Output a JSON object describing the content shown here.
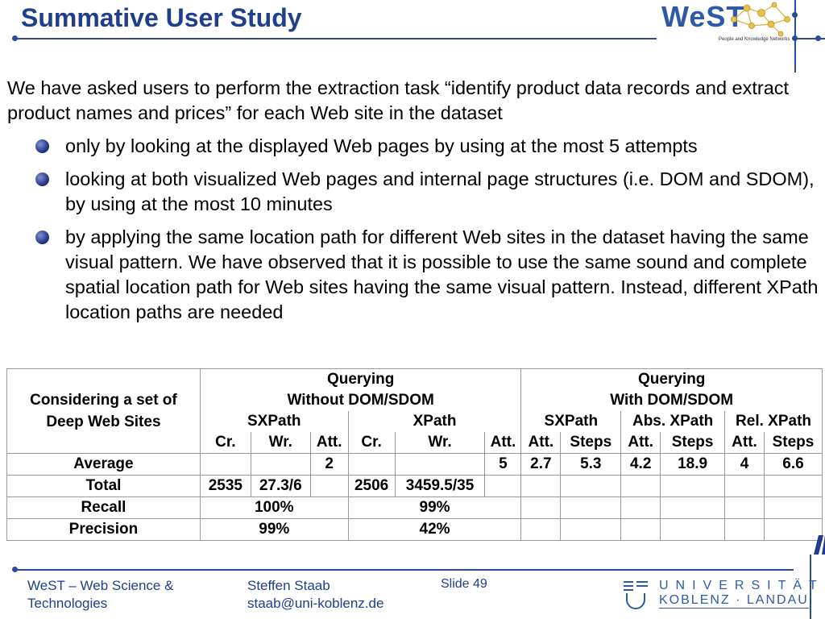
{
  "slide": {
    "title": "Summative User Study",
    "logo_text": "WeST",
    "logo_subtitle": "People and Knowledge Networks",
    "intro": "We have asked users to perform the extraction task “identify product data records and extract product names and prices” for each Web site in the dataset",
    "bullets": [
      "only by looking at the displayed Web pages by using at the most 5 attempts",
      "looking at both visualized Web pages and internal page structures (i.e. DOM and SDOM), by using at the most 10 minutes",
      "by applying the same location path for different Web sites in the dataset having the same visual pattern. We have observed that it is possible to use the same sound and complete spatial location path for Web sites having the same visual pattern. Instead, different XPath location paths are needed"
    ]
  },
  "table": {
    "corner": "Considering a set of Deep Web Sites",
    "group_without": [
      "Querying",
      "Without DOM/SDOM"
    ],
    "group_with": [
      "Querying",
      "With DOM/SDOM"
    ],
    "sub_groups": [
      "SXPath",
      "XPath",
      "SXPath",
      "Abs. XPath",
      "Rel. XPath"
    ],
    "columns": [
      "Cr.",
      "Wr.",
      "Att.",
      "Cr.",
      "Wr.",
      "Att.",
      "Att.",
      "Steps",
      "Att.",
      "Steps",
      "Att.",
      "Steps"
    ],
    "rows": [
      {
        "label": "Average",
        "cells": [
          "",
          "",
          "2",
          "",
          "",
          "5",
          "2.7",
          "5.3",
          "4.2",
          "18.9",
          "4",
          "6.6"
        ]
      },
      {
        "label": "Total",
        "cells": [
          "2535",
          "27.3/6",
          "",
          "2506",
          "3459.5/35",
          "",
          "",
          "",
          "",
          "",
          "",
          ""
        ]
      },
      {
        "label": "Recall",
        "sxpath": "100%",
        "xpath": "99%"
      },
      {
        "label": "Precision",
        "sxpath": "99%",
        "xpath": "42%"
      }
    ]
  },
  "footer": {
    "org_line1": "WeST – Web Science &",
    "org_line2": "Technologies",
    "author": "Steffen Staab",
    "email": "staab@uni-koblenz.de",
    "slide_label": "Slide 49",
    "uni_line1": "UNIVERSITÄT",
    "uni_line2": "KOBLENZ · LANDAU"
  },
  "colors": {
    "accent": "#1f3e8c",
    "rule": "#2a4a9a"
  }
}
